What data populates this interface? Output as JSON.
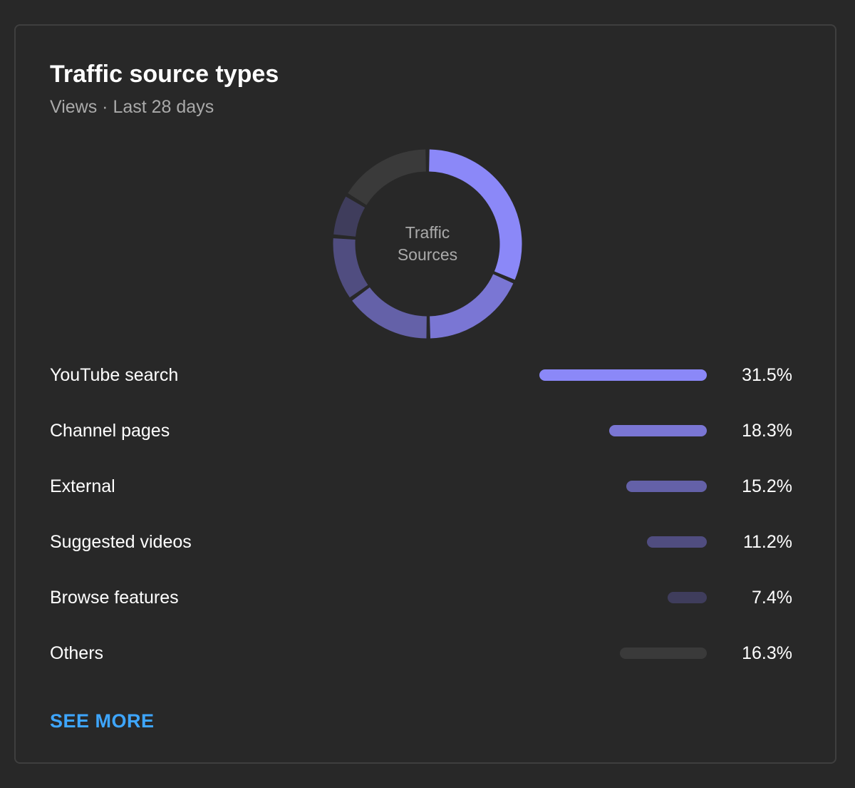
{
  "card": {
    "title": "Traffic source types",
    "subtitle": "Views · Last 28 days",
    "donut_center_line1": "Traffic",
    "donut_center_line2": "Sources",
    "see_more_label": "SEE MORE"
  },
  "chart_data": {
    "type": "pie",
    "style": "donut",
    "categories": [
      "YouTube search",
      "Channel pages",
      "External",
      "Suggested videos",
      "Browse features",
      "Others"
    ],
    "values": [
      31.5,
      18.3,
      15.2,
      11.2,
      7.4,
      16.3
    ],
    "value_labels": [
      "31.5%",
      "18.3%",
      "15.2%",
      "11.2%",
      "7.4%",
      "16.3%"
    ],
    "colors": [
      "#8b88f8",
      "#7a76d4",
      "#6461a8",
      "#504d80",
      "#3f3d5c",
      "#3a3a3a"
    ],
    "title": "Traffic source types",
    "subtitle": "Views · Last 28 days"
  }
}
